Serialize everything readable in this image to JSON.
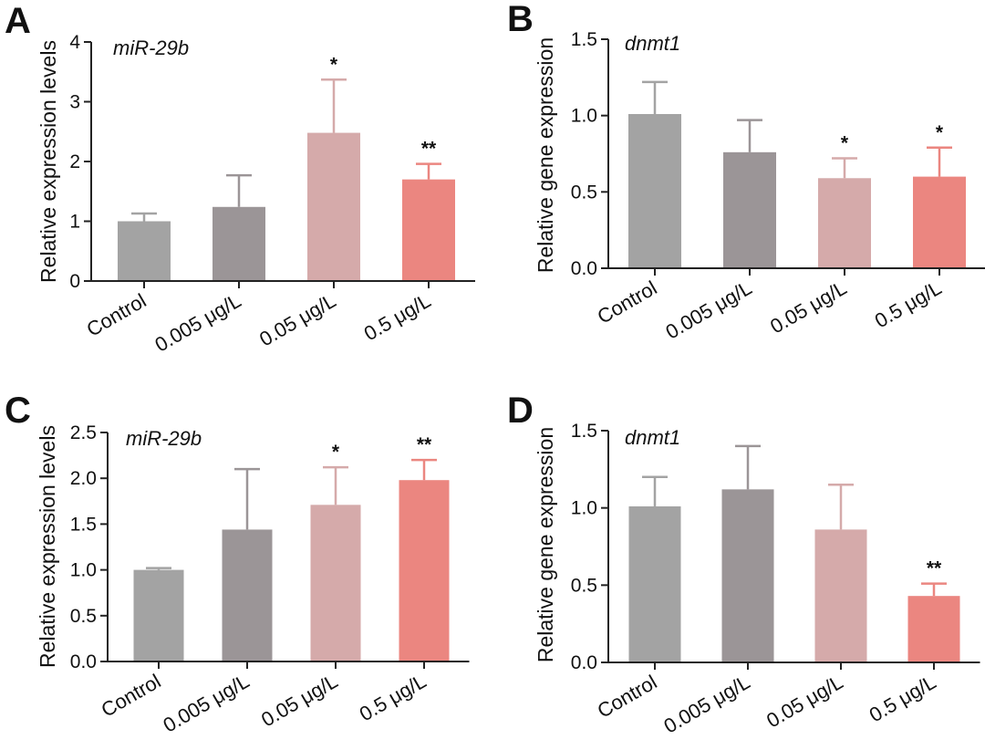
{
  "chart_data": [
    {
      "type": "bar",
      "panel_label": "A",
      "title": "miR-29b",
      "ylabel": "Relative expression levels",
      "xlabel": "",
      "categories": [
        "Control",
        "0.005 μg/L",
        "0.05 μg/L",
        "0.5 μg/L"
      ],
      "values": [
        1.0,
        1.24,
        2.48,
        1.7
      ],
      "error_upper": [
        0.13,
        0.53,
        0.89,
        0.26
      ],
      "significance": [
        "",
        "",
        "*",
        "**"
      ],
      "colors": [
        "#a3a3a3",
        "#9b9597",
        "#d5aaaa",
        "#eb8680"
      ],
      "ylim": [
        0,
        4
      ],
      "yticks": [
        0,
        1,
        2,
        3,
        4
      ],
      "ytick_labels": [
        "0",
        "1",
        "2",
        "3",
        "4"
      ]
    },
    {
      "type": "bar",
      "panel_label": "B",
      "title": "dnmt1",
      "ylabel": "Relative gene expression",
      "xlabel": "",
      "categories": [
        "Control",
        "0.005 μg/L",
        "0.05 μg/L",
        "0.5 μg/L"
      ],
      "values": [
        1.01,
        0.76,
        0.59,
        0.6
      ],
      "error_upper": [
        0.21,
        0.21,
        0.13,
        0.19
      ],
      "significance": [
        "",
        "",
        "*",
        "*"
      ],
      "colors": [
        "#a3a3a3",
        "#9b9597",
        "#d5aaaa",
        "#eb8680"
      ],
      "ylim": [
        0,
        1.5
      ],
      "yticks": [
        0,
        0.5,
        1.0,
        1.5
      ],
      "ytick_labels": [
        "0.0",
        "0.5",
        "1.0",
        "1.5"
      ]
    },
    {
      "type": "bar",
      "panel_label": "C",
      "title": "miR-29b",
      "ylabel": "Relative expression levels",
      "xlabel": "",
      "categories": [
        "Control",
        "0.005 μg/L",
        "0.05 μg/L",
        "0.5 μg/L"
      ],
      "values": [
        1.0,
        1.44,
        1.71,
        1.98
      ],
      "error_upper": [
        0.02,
        0.66,
        0.41,
        0.22
      ],
      "significance": [
        "",
        "",
        "*",
        "**"
      ],
      "colors": [
        "#a3a3a3",
        "#9b9597",
        "#d5aaaa",
        "#eb8680"
      ],
      "ylim": [
        0,
        2.5
      ],
      "yticks": [
        0,
        0.5,
        1.0,
        1.5,
        2.0,
        2.5
      ],
      "ytick_labels": [
        "0.0",
        "0.5",
        "1.0",
        "1.5",
        "2.0",
        "2.5"
      ]
    },
    {
      "type": "bar",
      "panel_label": "D",
      "title": "dnmt1",
      "ylabel": "Relative gene expression",
      "xlabel": "",
      "categories": [
        "Control",
        "0.005 μg/L",
        "0.05 μg/L",
        "0.5 μg/L"
      ],
      "values": [
        1.01,
        1.12,
        0.86,
        0.43
      ],
      "error_upper": [
        0.19,
        0.28,
        0.29,
        0.08
      ],
      "significance": [
        "",
        "",
        "",
        "**"
      ],
      "colors": [
        "#a3a3a3",
        "#9b9597",
        "#d5aaaa",
        "#eb8680"
      ],
      "ylim": [
        0,
        1.5
      ],
      "yticks": [
        0,
        0.5,
        1.0,
        1.5
      ],
      "ytick_labels": [
        "0.0",
        "0.5",
        "1.0",
        "1.5"
      ]
    }
  ]
}
